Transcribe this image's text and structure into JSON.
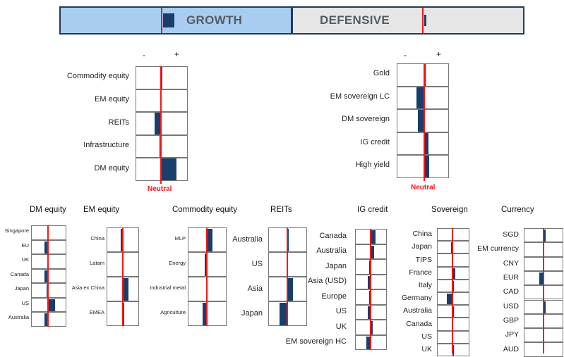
{
  "header": {
    "growth_label": "GROWTH",
    "defensive_label": "DEFENSIVE",
    "minus": "-",
    "plus": "+",
    "neutral_label": "Neutral"
  },
  "colors": {
    "bar": "#183f6b",
    "neutral_line": "#ff1414",
    "growth_bg": "#a9cdf0",
    "defensive_bg": "#e6e6e6"
  },
  "growth_panel": {
    "items": [
      {
        "label": "Commodity equity",
        "value": 0.05
      },
      {
        "label": "EM equity",
        "value": 0
      },
      {
        "label": "REITs",
        "value": -0.25
      },
      {
        "label": "Infrastructure",
        "value": -0.05
      },
      {
        "label": "DM equity",
        "value": 0.6
      }
    ]
  },
  "defensive_panel": {
    "items": [
      {
        "label": "Gold",
        "value": 0.04
      },
      {
        "label": "EM sovereign LC",
        "value": -0.3
      },
      {
        "label": "DM sovereign",
        "value": -0.25
      },
      {
        "label": "IG credit",
        "value": 0.18
      },
      {
        "label": "High yield",
        "value": 0.2
      }
    ]
  },
  "sections": [
    {
      "title": "DM equity",
      "rows": [
        {
          "label": "Singapore",
          "value": 0
        },
        {
          "label": "EU",
          "value": -0.2
        },
        {
          "label": "UK",
          "value": -0.05
        },
        {
          "label": "Canada",
          "value": -0.2
        },
        {
          "label": "Japan",
          "value": -0.1
        },
        {
          "label": "US",
          "value": 0.45
        },
        {
          "label": "Australia",
          "value": -0.2
        }
      ]
    },
    {
      "title": "EM equity",
      "rows": [
        {
          "label": "China",
          "value": -0.15
        },
        {
          "label": "Latam",
          "value": -0.05
        },
        {
          "label": "Asia ex China",
          "value": 0.4
        },
        {
          "label": "EMEA",
          "value": 0.05
        }
      ]
    },
    {
      "title": "Commodity equity",
      "rows": [
        {
          "label": "MLP",
          "value": 0.3
        },
        {
          "label": "Energy",
          "value": -0.1
        },
        {
          "label": "Industrial metal",
          "value": 0
        },
        {
          "label": "Agriculture",
          "value": -0.25
        }
      ]
    },
    {
      "title": "REITs",
      "rows": [
        {
          "label": "Australia",
          "value": 0.05
        },
        {
          "label": "US",
          "value": -0.05
        },
        {
          "label": "Asia",
          "value": 0.3
        },
        {
          "label": "Japan",
          "value": -0.45
        }
      ]
    },
    {
      "title": "IG credit",
      "rows": [
        {
          "label": "Canada",
          "value": 0.35
        },
        {
          "label": "Australia",
          "value": 0.25
        },
        {
          "label": "Japan",
          "value": -0.1
        },
        {
          "label": "Asia (USD)",
          "value": -0.2
        },
        {
          "label": "Europe",
          "value": -0.1
        },
        {
          "label": "US",
          "value": -0.2
        },
        {
          "label": "UK",
          "value": 0.15
        },
        {
          "label": "EM sovereign HC",
          "value": -0.3
        }
      ]
    },
    {
      "title": "Sovereign",
      "rows": [
        {
          "label": "China",
          "value": 0
        },
        {
          "label": "Japan",
          "value": -0.1
        },
        {
          "label": "TIPS",
          "value": 0
        },
        {
          "label": "France",
          "value": 0.2
        },
        {
          "label": "Italy",
          "value": 0.1
        },
        {
          "label": "Germany",
          "value": -0.4
        },
        {
          "label": "Australia",
          "value": 0.05
        },
        {
          "label": "Canada",
          "value": 0
        },
        {
          "label": "US",
          "value": 0
        },
        {
          "label": "UK",
          "value": 0.1
        }
      ]
    },
    {
      "title": "Currency",
      "rows": [
        {
          "label": "SGD",
          "value": 0.1
        },
        {
          "label": "EM currency",
          "value": 0
        },
        {
          "label": "CNY",
          "value": 0
        },
        {
          "label": "EUR",
          "value": -0.25
        },
        {
          "label": "CAD",
          "value": 0
        },
        {
          "label": "USD",
          "value": 0.1
        },
        {
          "label": "GBP",
          "value": 0
        },
        {
          "label": "JPY",
          "value": 0
        },
        {
          "label": "AUD",
          "value": 0
        }
      ]
    }
  ]
}
